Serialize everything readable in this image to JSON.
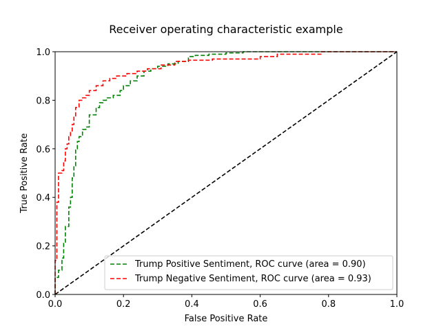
{
  "chart_data": {
    "type": "line",
    "title": "Receiver operating characteristic example",
    "xlabel": "False Positive Rate",
    "ylabel": "True Positive Rate",
    "xlim": [
      0.0,
      1.0
    ],
    "ylim": [
      0.0,
      1.0
    ],
    "xticks": [
      "0.0",
      "0.2",
      "0.4",
      "0.6",
      "0.8",
      "1.0"
    ],
    "yticks": [
      "0.0",
      "0.2",
      "0.4",
      "0.6",
      "0.8",
      "1.0"
    ],
    "grid": false,
    "legend_position": "lower-right",
    "series": [
      {
        "name": "Trump Positive Sentiment, ROC curve (area = 0.90)",
        "color": "#008000",
        "style": "dashed",
        "step": true,
        "x": [
          0.0,
          0.0,
          0.01,
          0.01,
          0.02,
          0.02,
          0.025,
          0.025,
          0.03,
          0.03,
          0.04,
          0.04,
          0.045,
          0.045,
          0.05,
          0.05,
          0.055,
          0.055,
          0.06,
          0.06,
          0.065,
          0.065,
          0.07,
          0.07,
          0.08,
          0.08,
          0.09,
          0.09,
          0.1,
          0.1,
          0.12,
          0.12,
          0.13,
          0.13,
          0.14,
          0.14,
          0.15,
          0.15,
          0.17,
          0.17,
          0.19,
          0.19,
          0.2,
          0.2,
          0.22,
          0.22,
          0.24,
          0.24,
          0.26,
          0.26,
          0.28,
          0.28,
          0.3,
          0.3,
          0.33,
          0.33,
          0.36,
          0.36,
          0.39,
          0.39,
          0.41,
          0.41,
          0.45,
          0.45,
          0.5,
          0.5,
          0.55,
          0.55,
          0.7,
          0.7,
          0.82,
          0.82,
          1.0
        ],
        "y": [
          0.0,
          0.07,
          0.07,
          0.1,
          0.1,
          0.15,
          0.15,
          0.21,
          0.21,
          0.28,
          0.28,
          0.36,
          0.36,
          0.4,
          0.4,
          0.48,
          0.48,
          0.53,
          0.53,
          0.6,
          0.6,
          0.63,
          0.63,
          0.65,
          0.65,
          0.68,
          0.68,
          0.69,
          0.69,
          0.74,
          0.74,
          0.77,
          0.77,
          0.79,
          0.79,
          0.8,
          0.8,
          0.81,
          0.81,
          0.82,
          0.82,
          0.84,
          0.84,
          0.86,
          0.86,
          0.88,
          0.88,
          0.9,
          0.9,
          0.92,
          0.92,
          0.93,
          0.93,
          0.94,
          0.94,
          0.95,
          0.95,
          0.96,
          0.96,
          0.98,
          0.98,
          0.985,
          0.985,
          0.99,
          0.99,
          0.995,
          0.995,
          1.0,
          1.0,
          1.0,
          1.0,
          1.0,
          1.0
        ]
      },
      {
        "name": "Trump Negative Sentiment, ROC curve (area = 0.93)",
        "color": "#ff0000",
        "style": "dashed",
        "step": true,
        "x": [
          0.0,
          0.0,
          0.005,
          0.005,
          0.01,
          0.01,
          0.02,
          0.02,
          0.025,
          0.025,
          0.03,
          0.03,
          0.035,
          0.035,
          0.04,
          0.04,
          0.045,
          0.045,
          0.05,
          0.05,
          0.055,
          0.055,
          0.06,
          0.06,
          0.07,
          0.07,
          0.08,
          0.08,
          0.09,
          0.09,
          0.1,
          0.1,
          0.12,
          0.12,
          0.14,
          0.14,
          0.16,
          0.16,
          0.18,
          0.18,
          0.21,
          0.21,
          0.24,
          0.24,
          0.27,
          0.27,
          0.31,
          0.31,
          0.35,
          0.35,
          0.39,
          0.39,
          0.46,
          0.46,
          0.6,
          0.6,
          0.65,
          0.65,
          0.7,
          0.7,
          0.78,
          0.78,
          0.9,
          0.9,
          1.0
        ],
        "y": [
          0.0,
          0.14,
          0.14,
          0.38,
          0.38,
          0.5,
          0.5,
          0.51,
          0.51,
          0.55,
          0.55,
          0.6,
          0.6,
          0.62,
          0.62,
          0.65,
          0.65,
          0.67,
          0.67,
          0.7,
          0.7,
          0.73,
          0.73,
          0.77,
          0.77,
          0.8,
          0.8,
          0.81,
          0.81,
          0.82,
          0.82,
          0.84,
          0.84,
          0.86,
          0.86,
          0.88,
          0.88,
          0.89,
          0.89,
          0.9,
          0.9,
          0.91,
          0.91,
          0.92,
          0.92,
          0.93,
          0.93,
          0.945,
          0.945,
          0.96,
          0.96,
          0.965,
          0.965,
          0.97,
          0.97,
          0.98,
          0.98,
          0.99,
          0.99,
          0.99,
          0.99,
          1.0,
          1.0,
          1.0,
          1.0
        ]
      },
      {
        "name": "",
        "color": "#000000",
        "style": "dashed",
        "step": false,
        "x": [
          0.0,
          1.0
        ],
        "y": [
          0.0,
          1.0
        ]
      }
    ]
  }
}
